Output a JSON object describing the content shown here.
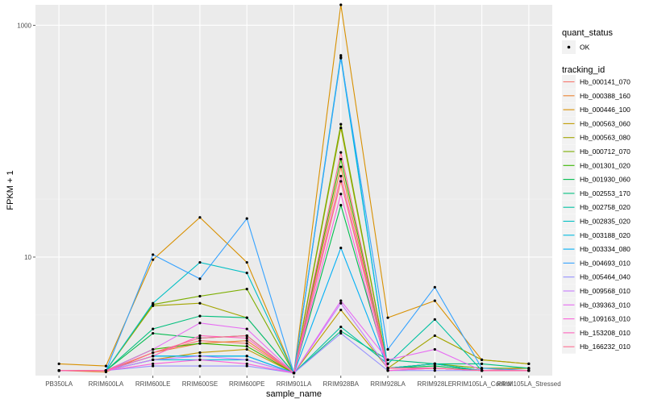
{
  "chart_data": {
    "type": "line",
    "title": "",
    "xlabel": "sample_name",
    "ylabel": "FPKM + 1",
    "y_scale": "log10",
    "ylim": [
      0.95,
      1500
    ],
    "y_ticks": [
      {
        "value": 10,
        "label": "10"
      },
      {
        "value": 1000,
        "label": "1000"
      }
    ],
    "categories": [
      "PB350LA",
      "RRIM600LA",
      "RRIM600LE",
      "RRIM600SE",
      "RRIM600PE",
      "RRIM901LA",
      "RRIM928BA",
      "RRIM928LA",
      "RRIM928LE",
      "RRIM105LA_Control",
      "RRIM105LA_Stressed"
    ],
    "background_color": "#ebebeb",
    "grid": true,
    "marker": "point",
    "marker_color": "#000000",
    "legend_position": "right",
    "legends": [
      {
        "title": "quant_status",
        "entries": [
          {
            "label": "OK",
            "symbol": "point"
          }
        ]
      },
      {
        "title": "tracking_id",
        "symbol": "line"
      }
    ],
    "series": [
      {
        "name": "Hb_000141_070",
        "color": "#F8766D",
        "values": [
          1.05,
          1.05,
          1.5,
          1.9,
          1.8,
          1.0,
          45,
          1.1,
          1.2,
          1.05,
          1.1
        ]
      },
      {
        "name": "Hb_000388_160",
        "color": "#EA8331",
        "values": [
          1.05,
          1.02,
          1.5,
          1.8,
          1.9,
          1.0,
          60,
          1.05,
          1.1,
          1.05,
          1.05
        ]
      },
      {
        "name": "Hb_000446_100",
        "color": "#D89000",
        "values": [
          1.2,
          1.15,
          9.5,
          22,
          9.0,
          1.0,
          1500,
          3.0,
          4.2,
          1.3,
          1.2
        ]
      },
      {
        "name": "Hb_000563_060",
        "color": "#C09B00",
        "values": [
          1.05,
          1.05,
          1.3,
          1.5,
          1.6,
          1.0,
          3.5,
          1.1,
          1.1,
          1.05,
          1.05
        ]
      },
      {
        "name": "Hb_000563_080",
        "color": "#A3A500",
        "values": [
          1.05,
          1.05,
          3.8,
          4.0,
          3.0,
          1.0,
          130,
          1.1,
          2.1,
          1.3,
          1.2
        ]
      },
      {
        "name": "Hb_000712_070",
        "color": "#7CAE00",
        "values": [
          1.05,
          1.05,
          3.9,
          4.6,
          5.3,
          1.0,
          140,
          1.1,
          1.2,
          1.1,
          1.1
        ]
      },
      {
        "name": "Hb_001301_020",
        "color": "#39B600",
        "values": [
          1.05,
          1.05,
          1.6,
          1.8,
          1.7,
          1.0,
          70,
          1.1,
          1.2,
          1.05,
          1.05
        ]
      },
      {
        "name": "Hb_001930_060",
        "color": "#00BB4E",
        "values": [
          1.05,
          1.05,
          2.2,
          2.0,
          2.1,
          1.0,
          28,
          1.1,
          1.15,
          1.05,
          1.05
        ]
      },
      {
        "name": "Hb_002553_170",
        "color": "#00BF7D",
        "values": [
          1.05,
          1.05,
          2.4,
          3.1,
          3.0,
          1.0,
          2.3,
          1.3,
          1.2,
          1.2,
          1.1
        ]
      },
      {
        "name": "Hb_002758_020",
        "color": "#00C1A3",
        "values": [
          1.05,
          1.05,
          1.4,
          1.4,
          1.4,
          1.0,
          2.5,
          1.2,
          2.9,
          1.05,
          1.05
        ]
      },
      {
        "name": "Hb_002835_020",
        "color": "#00BFC4",
        "values": [
          1.05,
          1.05,
          4.0,
          9.0,
          7.3,
          1.0,
          550,
          1.1,
          1.2,
          1.05,
          1.05
        ]
      },
      {
        "name": "Hb_003188_020",
        "color": "#00BAE0",
        "values": [
          1.05,
          1.05,
          1.3,
          1.3,
          1.3,
          1.0,
          520,
          1.1,
          1.1,
          1.05,
          1.05
        ]
      },
      {
        "name": "Hb_003334_080",
        "color": "#00B0F6",
        "values": [
          1.05,
          1.05,
          1.4,
          1.4,
          1.4,
          1.0,
          12,
          1.1,
          1.1,
          1.05,
          1.05
        ]
      },
      {
        "name": "Hb_004693_010",
        "color": "#35A2FF",
        "values": [
          1.05,
          1.05,
          10.5,
          6.5,
          21.5,
          1.0,
          530,
          1.6,
          5.5,
          1.1,
          1.05
        ]
      },
      {
        "name": "Hb_005464_040",
        "color": "#9590FF",
        "values": [
          1.05,
          1.05,
          1.15,
          1.15,
          1.15,
          1.0,
          2.2,
          1.05,
          1.05,
          1.05,
          1.05
        ]
      },
      {
        "name": "Hb_009568_010",
        "color": "#C77CFF",
        "values": [
          1.05,
          1.05,
          1.3,
          1.4,
          1.3,
          1.0,
          4.0,
          1.1,
          1.1,
          1.05,
          1.05
        ]
      },
      {
        "name": "Hb_039363_010",
        "color": "#E76BF3",
        "values": [
          1.05,
          1.05,
          1.6,
          2.7,
          2.4,
          1.0,
          4.2,
          1.3,
          1.6,
          1.05,
          1.05
        ]
      },
      {
        "name": "Hb_109163_010",
        "color": "#FA62DB",
        "values": [
          1.05,
          1.05,
          1.2,
          1.3,
          1.2,
          1.0,
          35,
          1.05,
          1.1,
          1.05,
          1.05
        ]
      },
      {
        "name": "Hb_153208_010",
        "color": "#FF62BC",
        "values": [
          1.05,
          1.05,
          1.4,
          2.1,
          2.0,
          1.0,
          50,
          1.1,
          1.1,
          1.05,
          1.05
        ]
      },
      {
        "name": "Hb_166232_010",
        "color": "#FF6C91",
        "values": [
          1.05,
          1.05,
          1.5,
          2.0,
          2.1,
          1.0,
          80,
          1.1,
          1.1,
          1.05,
          1.05
        ]
      }
    ]
  }
}
